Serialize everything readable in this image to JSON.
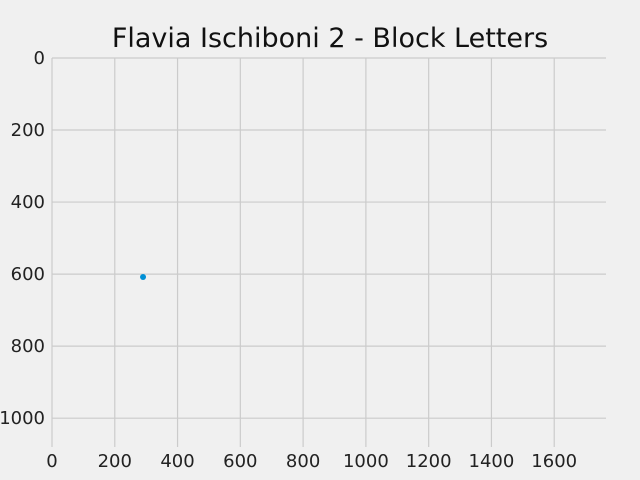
{
  "chart_data": {
    "type": "scatter",
    "title": "Flavia Ischiboni 2 - Block Letters",
    "xlabel": "",
    "ylabel": "",
    "xlim": [
      0,
      1765
    ],
    "ylim": [
      1080,
      0
    ],
    "y_inverted": true,
    "grid": true,
    "xticks": [
      0,
      200,
      400,
      600,
      800,
      1000,
      1200,
      1400,
      1600
    ],
    "yticks": [
      0,
      200,
      400,
      600,
      800,
      1000
    ],
    "points": [
      {
        "x": 290,
        "y": 608
      }
    ],
    "colors": {
      "background": "#f0f0f0",
      "grid": "#cbcbcb",
      "point": "#008fd5"
    }
  }
}
